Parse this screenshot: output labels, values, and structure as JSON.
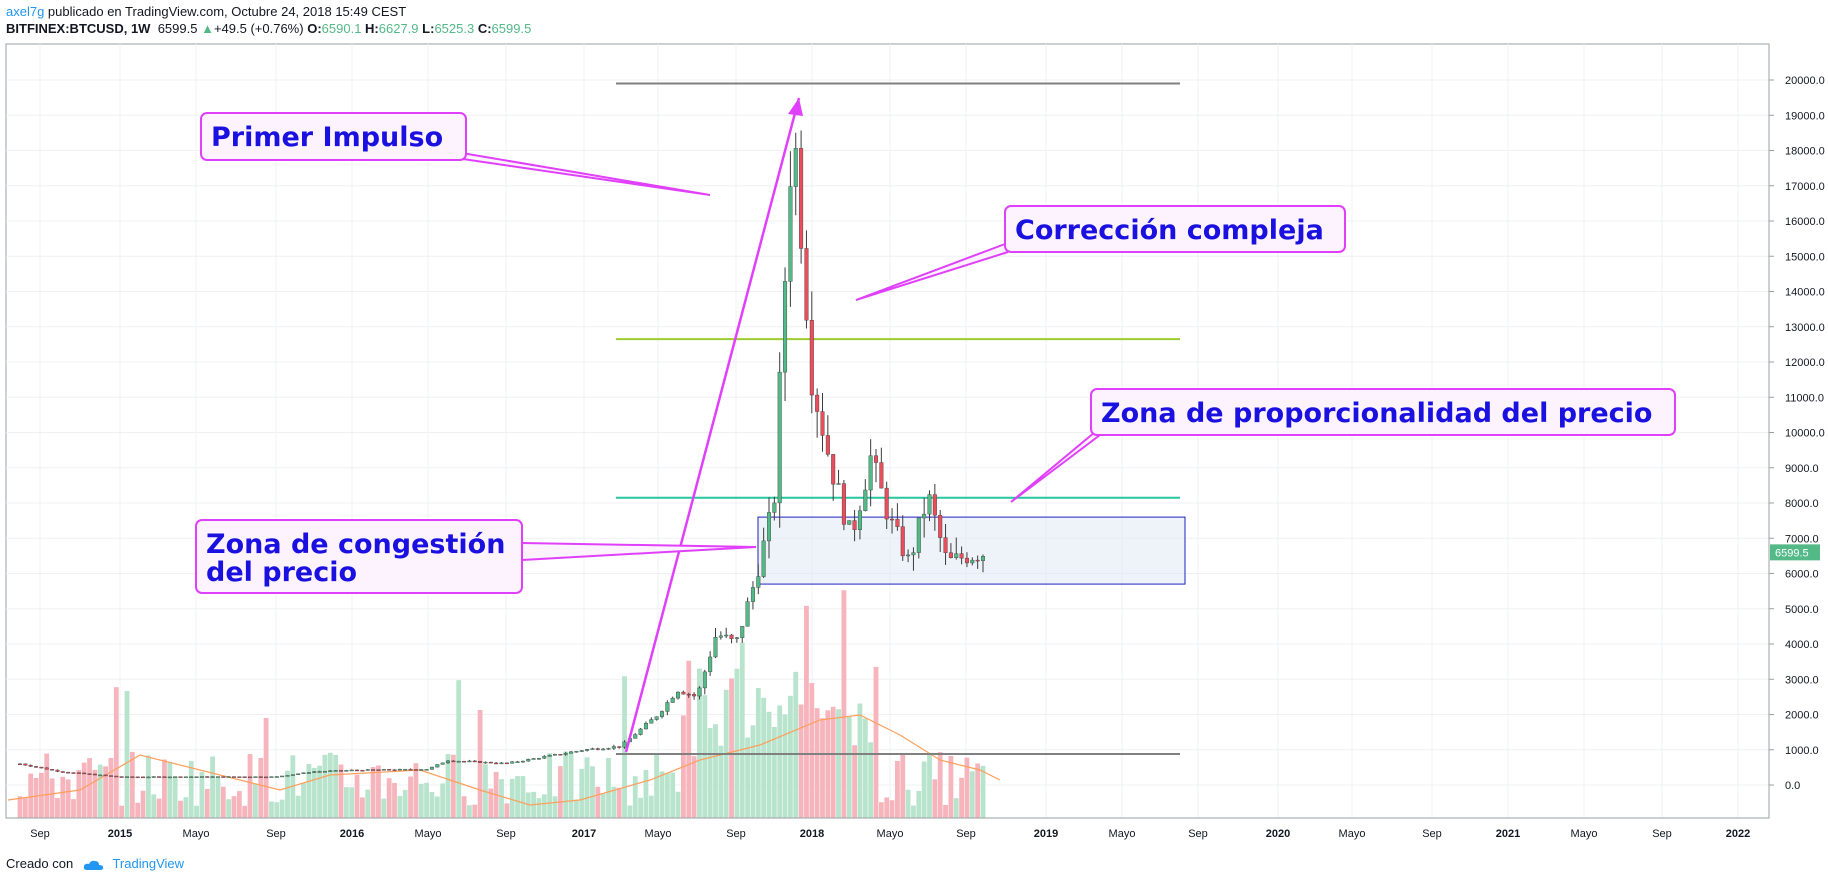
{
  "header": {
    "user": "axel7g",
    "published": " publicado en TradingView.com, Octubre 24, 2018 15:49 CEST",
    "symbol": "BITFINEX:BTCUSD, 1W",
    "last": "6599.5",
    "change": "+49.5 (+0.76%)",
    "open_label": "O:",
    "open": "6590.1",
    "high_label": "H:",
    "high": "6627.9",
    "low_label": "L:",
    "low": "6525.3",
    "close_label": "C:",
    "close": "6599.5"
  },
  "footer": {
    "created_label": "Creado con",
    "brand": "TradingView"
  },
  "colors": {
    "up": "#53b987",
    "down": "#eb4d5c",
    "vol_up": "#b8e3cc",
    "vol_down": "#f6b5bc",
    "annotation_border": "#e040fb",
    "annotation_text": "#1a10e0",
    "level_gray": "#808080",
    "level_green": "#9ccc30",
    "level_teal": "#26c6a0",
    "zone_border": "#2020c0",
    "zone_fill": "#dfe9f3",
    "ma_line": "#ff9f5a"
  },
  "chart_data": {
    "type": "candlestick",
    "y_ticks": [
      "20000.0",
      "19000.0",
      "18000.0",
      "17000.0",
      "16000.0",
      "15000.0",
      "14000.0",
      "13000.0",
      "12000.0",
      "11000.0",
      "10000.0",
      "9000.0",
      "8000.0",
      "7000.0",
      "6000.0",
      "5000.0",
      "4000.0",
      "3000.0",
      "2000.0",
      "1000.0",
      "0.0"
    ],
    "x_ticks": [
      "Sep",
      "2015",
      "Mayo",
      "Sep",
      "2016",
      "Mayo",
      "Sep",
      "2017",
      "Mayo",
      "Sep",
      "2018",
      "Mayo",
      "Sep",
      "2019",
      "Mayo",
      "Sep",
      "2020",
      "Mayo",
      "Sep",
      "2021",
      "Mayo",
      "Sep",
      "2022"
    ],
    "ylim": [
      0,
      20000
    ],
    "last_price_label": "6599.5",
    "price_path": [
      [
        "2014-08",
        600
      ],
      [
        "2014-10",
        380
      ],
      [
        "2015-01",
        230
      ],
      [
        "2015-05",
        235
      ],
      [
        "2015-09",
        235
      ],
      [
        "2015-11",
        380
      ],
      [
        "2016-01",
        420
      ],
      [
        "2016-05",
        450
      ],
      [
        "2016-06",
        700
      ],
      [
        "2016-09",
        610
      ],
      [
        "2016-12",
        900
      ],
      [
        "2017-01",
        1000
      ],
      [
        "2017-03",
        1100
      ],
      [
        "2017-05",
        2000
      ],
      [
        "2017-06",
        2700
      ],
      [
        "2017-07",
        2500
      ],
      [
        "2017-08",
        4300
      ],
      [
        "2017-09",
        4000
      ],
      [
        "2017-10",
        5800
      ],
      [
        "2017-11",
        8000
      ],
      [
        "2017-12",
        19000
      ],
      [
        "2018-01",
        11500
      ],
      [
        "2018-02",
        9000
      ],
      [
        "2018-03",
        7000
      ],
      [
        "2018-04",
        9300
      ],
      [
        "2018-05",
        7500
      ],
      [
        "2018-06",
        6300
      ],
      [
        "2018-07",
        8200
      ],
      [
        "2018-08",
        6300
      ],
      [
        "2018-09",
        6500
      ],
      [
        "2018-10",
        6599.5
      ]
    ],
    "levels": [
      {
        "name": "top",
        "value": 19900
      },
      {
        "name": "green",
        "value": 12650
      },
      {
        "name": "teal",
        "value": 8150
      },
      {
        "name": "bottom",
        "value": 880
      }
    ],
    "zone": {
      "from": "2017-10",
      "to": "2019-03",
      "low": 5700,
      "high": 7600
    },
    "annotations": [
      {
        "text": "Primer Impulso"
      },
      {
        "text": "Corrección compleja"
      },
      {
        "text": "Zona de proporcionalidad del precio"
      },
      {
        "text_lines": [
          "Zona de congestión",
          "del precio"
        ]
      }
    ]
  }
}
